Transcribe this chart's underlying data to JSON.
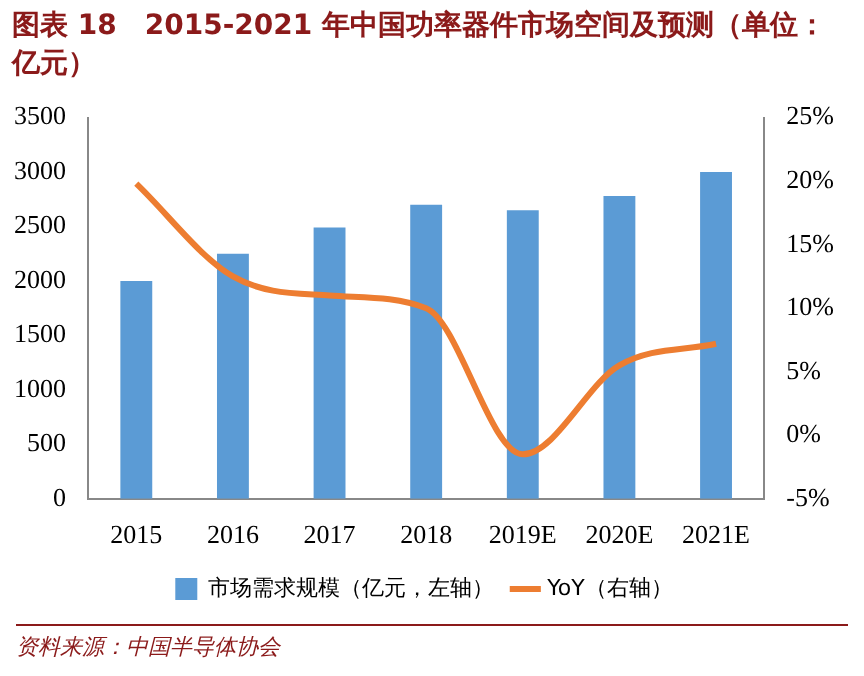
{
  "chart_data": {
    "type": "bar",
    "title": "图表 18　2015-2021 年中国功率器件市场空间及预测（单位：亿元）",
    "categories": [
      "2015",
      "2016",
      "2017",
      "2018",
      "2019E",
      "2020E",
      "2021E"
    ],
    "series": [
      {
        "name": "市场需求规模（亿元，左轴）",
        "color": "#5b9bd5",
        "values": [
          2000,
          2250,
          2490,
          2700,
          2650,
          2780,
          3000
        ]
      },
      {
        "name": "YoY（右轴）",
        "type": "line",
        "axis": "y2",
        "color": "#ed7d31",
        "values": [
          19.8,
          12.5,
          11,
          10,
          -1.5,
          5.5,
          7.2
        ]
      }
    ],
    "ylim": [
      0,
      3500
    ],
    "yticks": [
      0,
      500,
      1000,
      1500,
      2000,
      2500,
      3000,
      3500
    ],
    "y2lim": [
      -5,
      25
    ],
    "y2ticks": [
      {
        "value": -5,
        "label": "-5%"
      },
      {
        "value": 0,
        "label": "0%"
      },
      {
        "value": 5,
        "label": "5%"
      },
      {
        "value": 10,
        "label": "10%"
      },
      {
        "value": 15,
        "label": "15%"
      },
      {
        "value": 20,
        "label": "20%"
      },
      {
        "value": 25,
        "label": "25%"
      }
    ],
    "grid": false,
    "legend": "bottom",
    "marker": "none",
    "annotations": [
      "资料来源：中国半导体协会"
    ]
  }
}
